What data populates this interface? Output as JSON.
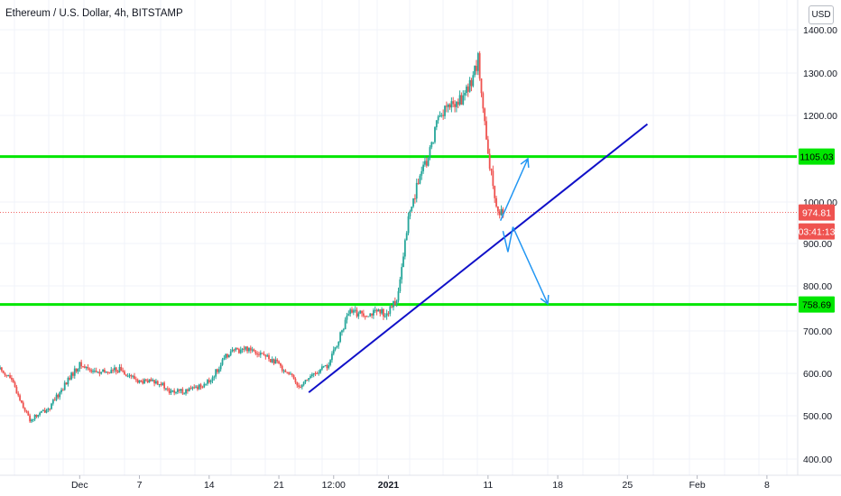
{
  "header": {
    "title": "Ethereum / U.S. Dollar, 4h, BITSTAMP",
    "currency_button": "USD"
  },
  "colors": {
    "up": "#26a69a",
    "down": "#ef5350",
    "support_resistance": "#00e600",
    "trendline": "#1010c8",
    "projection_arrows": "#2196f3",
    "last_price_tag": "#ef5350",
    "level_tag": "#00e600"
  },
  "price_axis": {
    "ticks": [
      "1400.00",
      "1300.00",
      "1200.00",
      "1000.00",
      "900.00",
      "800.00",
      "700.00",
      "600.00",
      "500.00",
      "400.00"
    ]
  },
  "time_axis": {
    "ticks": [
      "Dec",
      "7",
      "14",
      "21",
      "12:00",
      "2021",
      "11",
      "18",
      "25",
      "Feb",
      "8"
    ]
  },
  "tags": {
    "resistance": "1105.03",
    "last_price": "974.81",
    "countdown": "03:41:13",
    "support": "758.69"
  },
  "chart_data": {
    "type": "candlestick",
    "title": "Ethereum / U.S. Dollar, 4h, BITSTAMP",
    "y_unit": "USD",
    "ylim": [
      380,
      1430
    ],
    "x_range": [
      "2020-11-23",
      "2021-02-11"
    ],
    "y_ticks": [
      400,
      500,
      600,
      700,
      800,
      900,
      1000,
      1200,
      1300,
      1400
    ],
    "x_ticks": [
      {
        "label": "Dec",
        "date": "2020-12-01"
      },
      {
        "label": "7",
        "date": "2020-12-07"
      },
      {
        "label": "14",
        "date": "2020-12-14"
      },
      {
        "label": "21",
        "date": "2020-12-21"
      },
      {
        "label": "12:00",
        "date": "2020-12-26T12:00"
      },
      {
        "label": "2021",
        "date": "2021-01-01"
      },
      {
        "label": "11",
        "date": "2021-01-11"
      },
      {
        "label": "18",
        "date": "2021-01-18"
      },
      {
        "label": "25",
        "date": "2021-01-25"
      },
      {
        "label": "Feb",
        "date": "2021-02-01"
      },
      {
        "label": "8",
        "date": "2021-02-08"
      }
    ],
    "price_path": [
      {
        "date": "2020-11-23",
        "close": 610
      },
      {
        "date": "2020-11-24",
        "close": 590
      },
      {
        "date": "2020-11-26",
        "close": 490
      },
      {
        "date": "2020-11-28",
        "close": 520
      },
      {
        "date": "2020-11-30",
        "close": 590
      },
      {
        "date": "2020-12-01",
        "close": 620
      },
      {
        "date": "2020-12-03",
        "close": 600
      },
      {
        "date": "2020-12-05",
        "close": 610
      },
      {
        "date": "2020-12-07",
        "close": 580
      },
      {
        "date": "2020-12-09",
        "close": 580
      },
      {
        "date": "2020-12-10",
        "close": 555
      },
      {
        "date": "2020-12-12",
        "close": 560
      },
      {
        "date": "2020-12-14",
        "close": 580
      },
      {
        "date": "2020-12-16",
        "close": 650
      },
      {
        "date": "2020-12-18",
        "close": 660
      },
      {
        "date": "2020-12-19",
        "close": 650
      },
      {
        "date": "2020-12-21",
        "close": 620
      },
      {
        "date": "2020-12-22",
        "close": 600
      },
      {
        "date": "2020-12-23",
        "close": 570
      },
      {
        "date": "2020-12-24",
        "close": 590
      },
      {
        "date": "2020-12-26",
        "close": 620
      },
      {
        "date": "2020-12-27",
        "close": 680
      },
      {
        "date": "2020-12-28",
        "close": 740
      },
      {
        "date": "2020-12-30",
        "close": 740
      },
      {
        "date": "2021-01-01",
        "close": 740
      },
      {
        "date": "2021-01-02",
        "close": 780
      },
      {
        "date": "2021-01-03",
        "close": 960
      },
      {
        "date": "2021-01-04",
        "close": 1050
      },
      {
        "date": "2021-01-05",
        "close": 1100
      },
      {
        "date": "2021-01-06",
        "close": 1200
      },
      {
        "date": "2021-01-07",
        "close": 1220
      },
      {
        "date": "2021-01-08",
        "close": 1230
      },
      {
        "date": "2021-01-09",
        "close": 1260
      },
      {
        "date": "2021-01-10",
        "close": 1330
      },
      {
        "date": "2021-01-11",
        "close": 1100
      },
      {
        "date": "2021-01-12",
        "close": 980
      },
      {
        "date": "2021-01-12T12:00",
        "close": 974.81
      }
    ],
    "horizontal_levels": [
      {
        "label": "1105.03",
        "price": 1105.03
      },
      {
        "label": "758.69",
        "price": 758.69
      }
    ],
    "last_price": 974.81,
    "trendline": {
      "start": {
        "date": "2020-12-24",
        "price": 555
      },
      "end": {
        "date": "2021-01-27",
        "price": 1180
      }
    },
    "projections": [
      {
        "direction": "up",
        "from": {
          "date": "2021-01-12T06:00",
          "price": 955
        },
        "to": {
          "date": "2021-01-15",
          "price": 1100
        }
      },
      {
        "direction": "down",
        "from": {
          "date": "2021-01-13T12:00",
          "price": 940
        },
        "to": {
          "date": "2021-01-17",
          "price": 760
        }
      }
    ],
    "grid": true,
    "legend": "none"
  }
}
